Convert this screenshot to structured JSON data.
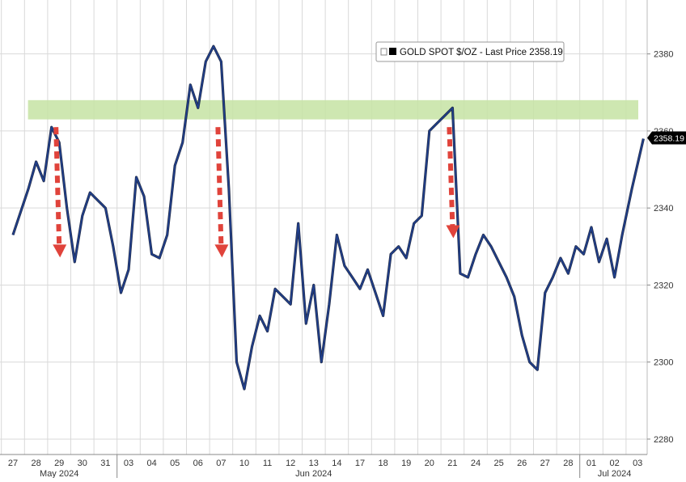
{
  "chart_data": {
    "type": "line",
    "legend": {
      "label": "GOLD SPOT $/OZ - Last Price 2358.19",
      "placement": "top-right",
      "color": "#000000"
    },
    "last_price_label": "2358.19",
    "y_axis": {
      "side": "right",
      "ticks": [
        2280,
        2300,
        2320,
        2340,
        2360,
        2380
      ],
      "tick_labels": [
        "2280",
        "2300",
        "2320",
        "2340",
        "2360",
        "2380"
      ],
      "ylim": [
        2276,
        2394
      ]
    },
    "x_axis": {
      "day_labels": [
        "27",
        "28",
        "29",
        "30",
        "31",
        "03",
        "04",
        "05",
        "06",
        "07",
        "10",
        "11",
        "12",
        "13",
        "14",
        "17",
        "18",
        "19",
        "20",
        "21",
        "24",
        "25",
        "26",
        "27",
        "28",
        "01",
        "02",
        "03"
      ],
      "month_labels": [
        {
          "text": "May 2024",
          "at_day": "29"
        },
        {
          "text": "Jun 2024",
          "at_day": "13"
        },
        {
          "text": "Jul 2024",
          "at_day": "02"
        }
      ],
      "month_separators_after": [
        "31",
        "28"
      ]
    },
    "grid": true,
    "resistance_band": {
      "y_low": 2363,
      "y_high": 2368,
      "color": "#c6e3a3"
    },
    "annotations": [
      {
        "type": "down-arrow",
        "day": "29",
        "from": 2361,
        "to": 2328,
        "color": "#e0433b"
      },
      {
        "type": "down-arrow",
        "day": "07",
        "from": 2361,
        "to": 2328,
        "color": "#e0433b"
      },
      {
        "type": "down-arrow",
        "day": "21",
        "from": 2361,
        "to": 2333,
        "color": "#e0433b"
      }
    ],
    "series": [
      {
        "color": "#1f3f8f",
        "x": [
          "27",
          "28",
          "28",
          "28",
          "29",
          "29",
          "29",
          "30",
          "30",
          "30",
          "31",
          "31",
          "31",
          "03",
          "03",
          "03",
          "04",
          "04",
          "04",
          "05",
          "05",
          "05",
          "06",
          "06",
          "06",
          "07",
          "07",
          "07",
          "10",
          "10",
          "10",
          "11",
          "11",
          "11",
          "12",
          "12",
          "12",
          "13",
          "13",
          "13",
          "14",
          "14",
          "14",
          "17",
          "17",
          "17",
          "18",
          "18",
          "18",
          "19",
          "19",
          "19",
          "20",
          "20",
          "20",
          "21",
          "21",
          "21",
          "24",
          "24",
          "24",
          "25",
          "25",
          "25",
          "26",
          "26",
          "26",
          "27",
          "27",
          "27",
          "28",
          "28",
          "28",
          "01",
          "01",
          "01",
          "02",
          "02",
          "02",
          "03",
          "03"
        ],
        "y": [
          2333,
          2345,
          2352,
          2347,
          2361,
          2357,
          2340,
          2326,
          2338,
          2344,
          2342,
          2340,
          2330,
          2318,
          2324,
          2348,
          2343,
          2328,
          2327,
          2333,
          2351,
          2357,
          2372,
          2366,
          2378,
          2382,
          2378,
          2345,
          2300,
          2293,
          2304,
          2312,
          2308,
          2319,
          2317,
          2315,
          2336,
          2310,
          2320,
          2300,
          2315,
          2333,
          2325,
          2322,
          2319,
          2324,
          2318,
          2312,
          2328,
          2330,
          2327,
          2336,
          2338,
          2360,
          2362,
          2364,
          2366,
          2323,
          2322,
          2328,
          2333,
          2330,
          2326,
          2322,
          2317,
          2307,
          2300,
          2298,
          2318,
          2322,
          2327,
          2323,
          2330,
          2328,
          2335,
          2326,
          2332,
          2322,
          2333,
          2345,
          2358
        ]
      }
    ]
  }
}
